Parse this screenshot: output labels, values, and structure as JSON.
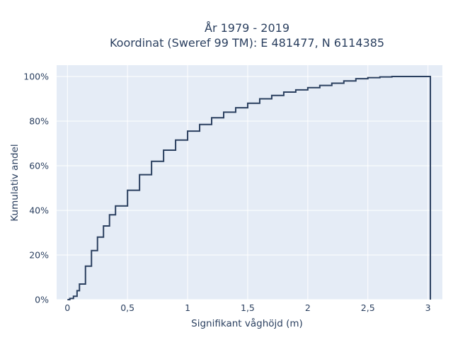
{
  "chart_data": {
    "type": "line",
    "title": [
      "År 1979 - 2019",
      "Koordinat (Sweref 99 TM): E 481477, N 6114385"
    ],
    "xlabel": "Signifikant våghöjd (m)",
    "ylabel": "Kumulativ andel",
    "xlim": [
      -0.09,
      3.12
    ],
    "ylim": [
      0,
      1.0
    ],
    "x_ticks": [
      0,
      0.5,
      1,
      1.5,
      2,
      2.5,
      3
    ],
    "x_tick_labels": [
      "0",
      "0,5",
      "1",
      "1,5",
      "2",
      "2,5",
      "3"
    ],
    "y_ticks": [
      0,
      0.2,
      0.4,
      0.6,
      0.8,
      1.0
    ],
    "y_tick_labels": [
      "0%",
      "20%",
      "40%",
      "60%",
      "80%",
      "100%"
    ],
    "grid": true,
    "line_style": "step",
    "series": [
      {
        "color": "#2a3f5f",
        "x": [
          0,
          0.02,
          0.05,
          0.08,
          0.1,
          0.15,
          0.2,
          0.25,
          0.3,
          0.35,
          0.4,
          0.5,
          0.6,
          0.7,
          0.8,
          0.9,
          1.0,
          1.1,
          1.2,
          1.3,
          1.4,
          1.5,
          1.6,
          1.7,
          1.8,
          1.9,
          2.0,
          2.1,
          2.2,
          2.3,
          2.4,
          2.5,
          2.6,
          2.7,
          2.8,
          2.9,
          3.02,
          3.02
        ],
        "y": [
          0,
          0.005,
          0.015,
          0.04,
          0.07,
          0.15,
          0.22,
          0.28,
          0.33,
          0.38,
          0.42,
          0.49,
          0.56,
          0.62,
          0.67,
          0.715,
          0.755,
          0.785,
          0.815,
          0.84,
          0.86,
          0.88,
          0.9,
          0.915,
          0.93,
          0.94,
          0.95,
          0.96,
          0.97,
          0.98,
          0.99,
          0.995,
          0.998,
          1.0,
          1.0,
          1.0,
          1.0,
          0
        ]
      }
    ]
  }
}
